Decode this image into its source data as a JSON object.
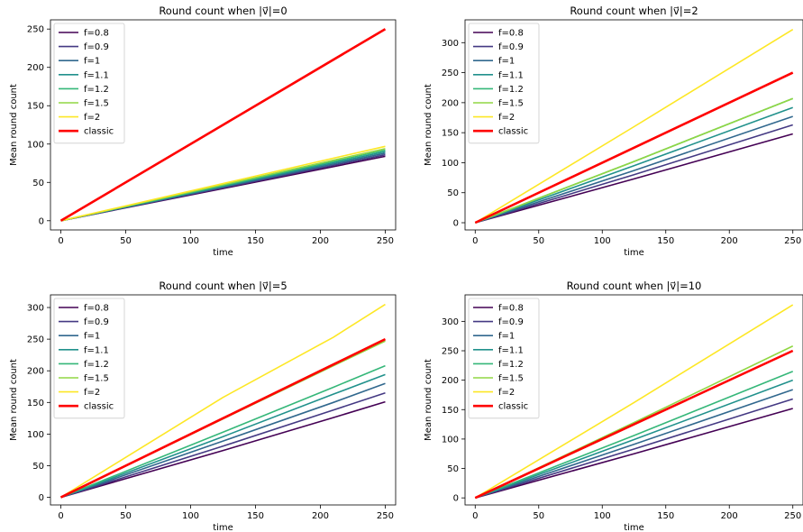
{
  "chart_data": [
    {
      "type": "line",
      "title": "Round count when |v⃗|=0",
      "xlabel": "time",
      "ylabel": "Mean round count",
      "xlim": [
        -8,
        258
      ],
      "ylim": [
        -12,
        262
      ],
      "xticks": [
        0,
        50,
        100,
        150,
        200,
        250
      ],
      "yticks": [
        0,
        50,
        100,
        150,
        200,
        250
      ],
      "legend": "top-left",
      "x": [
        0,
        125,
        250
      ],
      "series": [
        {
          "name": "f=0.8",
          "color": "#440154",
          "values": [
            0,
            42,
            84
          ]
        },
        {
          "name": "f=0.9",
          "color": "#443983",
          "values": [
            0,
            43,
            86
          ]
        },
        {
          "name": "f=1",
          "color": "#31688e",
          "values": [
            0,
            44,
            88
          ]
        },
        {
          "name": "f=1.1",
          "color": "#21918c",
          "values": [
            0,
            45,
            90
          ]
        },
        {
          "name": "f=1.2",
          "color": "#35b779",
          "values": [
            0,
            46,
            92
          ]
        },
        {
          "name": "f=1.5",
          "color": "#90d743",
          "values": [
            0,
            47,
            94
          ]
        },
        {
          "name": "f=2",
          "color": "#fde725",
          "values": [
            0,
            48.5,
            97
          ]
        },
        {
          "name": "classic",
          "color": "#ff0000",
          "values": [
            0,
            125,
            250
          ]
        }
      ]
    },
    {
      "type": "line",
      "title": "Round count when |v⃗|=2",
      "xlabel": "time",
      "ylabel": "Mean round count",
      "xlim": [
        -8,
        258
      ],
      "ylim": [
        -12,
        338
      ],
      "xticks": [
        0,
        50,
        100,
        150,
        200,
        250
      ],
      "yticks": [
        0,
        50,
        100,
        150,
        200,
        250,
        300
      ],
      "legend": "top-left",
      "x": [
        0,
        125,
        250
      ],
      "series": [
        {
          "name": "f=0.8",
          "color": "#440154",
          "values": [
            0,
            73,
            148
          ]
        },
        {
          "name": "f=0.9",
          "color": "#443983",
          "values": [
            0,
            80,
            163
          ]
        },
        {
          "name": "f=1",
          "color": "#31688e",
          "values": [
            0,
            87,
            177
          ]
        },
        {
          "name": "f=1.1",
          "color": "#21918c",
          "values": [
            0,
            95,
            192
          ]
        },
        {
          "name": "f=1.2",
          "color": "#35b779",
          "values": [
            0,
            102,
            207
          ]
        },
        {
          "name": "f=1.5",
          "color": "#90d743",
          "values": [
            0,
            102,
            207
          ]
        },
        {
          "name": "f=2",
          "color": "#fde725",
          "values": [
            0,
            160,
            322
          ]
        },
        {
          "name": "classic",
          "color": "#ff0000",
          "values": [
            0,
            125,
            250
          ]
        }
      ]
    },
    {
      "type": "line",
      "title": "Round count when |v⃗|=5",
      "xlabel": "time",
      "ylabel": "Mean round count",
      "xlim": [
        -8,
        258
      ],
      "ylim": [
        -12,
        320
      ],
      "xticks": [
        0,
        50,
        100,
        150,
        200,
        250
      ],
      "yticks": [
        0,
        50,
        100,
        150,
        200,
        250,
        300
      ],
      "legend": "top-left",
      "x": [
        0,
        125,
        210,
        250
      ],
      "series": [
        {
          "name": "f=0.8",
          "color": "#440154",
          "values": [
            0,
            74,
            126,
            151
          ]
        },
        {
          "name": "f=0.9",
          "color": "#443983",
          "values": [
            0,
            81,
            138,
            165
          ]
        },
        {
          "name": "f=1",
          "color": "#31688e",
          "values": [
            0,
            89,
            150,
            180
          ]
        },
        {
          "name": "f=1.1",
          "color": "#21918c",
          "values": [
            0,
            96,
            163,
            194
          ]
        },
        {
          "name": "f=1.2",
          "color": "#35b779",
          "values": [
            0,
            103,
            174,
            208
          ]
        },
        {
          "name": "f=1.5",
          "color": "#90d743",
          "values": [
            0,
            124,
            208,
            247
          ]
        },
        {
          "name": "f=2",
          "color": "#fde725",
          "values": [
            0,
            158,
            253,
            305
          ]
        },
        {
          "name": "classic",
          "color": "#ff0000",
          "values": [
            0,
            125,
            210,
            250
          ]
        }
      ]
    },
    {
      "type": "line",
      "title": "Round count when |v⃗|=10",
      "xlabel": "time",
      "ylabel": "Mean round count",
      "xlim": [
        -8,
        258
      ],
      "ylim": [
        -12,
        345
      ],
      "xticks": [
        0,
        50,
        100,
        150,
        200,
        250
      ],
      "yticks": [
        0,
        50,
        100,
        150,
        200,
        250,
        300
      ],
      "legend": "top-left",
      "x": [
        0,
        125,
        250
      ],
      "series": [
        {
          "name": "f=0.8",
          "color": "#440154",
          "values": [
            0,
            75,
            152
          ]
        },
        {
          "name": "f=0.9",
          "color": "#443983",
          "values": [
            0,
            83,
            168
          ]
        },
        {
          "name": "f=1",
          "color": "#31688e",
          "values": [
            0,
            91,
            184
          ]
        },
        {
          "name": "f=1.1",
          "color": "#21918c",
          "values": [
            0,
            99,
            200
          ]
        },
        {
          "name": "f=1.2",
          "color": "#35b779",
          "values": [
            0,
            106,
            215
          ]
        },
        {
          "name": "f=1.5",
          "color": "#90d743",
          "values": [
            0,
            128,
            258
          ]
        },
        {
          "name": "f=2",
          "color": "#fde725",
          "values": [
            0,
            162,
            328
          ]
        },
        {
          "name": "classic",
          "color": "#ff0000",
          "values": [
            0,
            125,
            250
          ]
        }
      ]
    }
  ]
}
